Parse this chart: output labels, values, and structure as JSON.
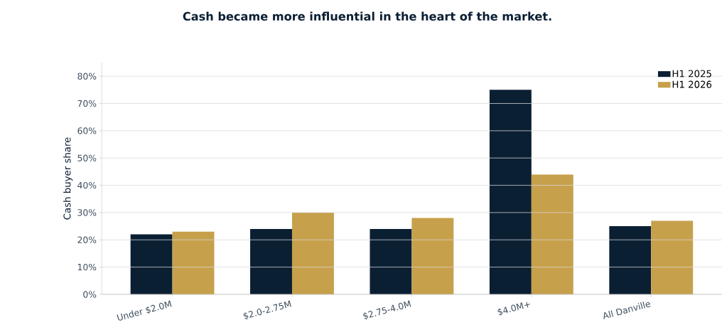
{
  "chart_data": {
    "type": "bar",
    "title": "Cash became more influential in the heart of the market.",
    "ylabel": "Cash buyer share",
    "categories": [
      "Under $2.0M",
      "$2.0-2.75M",
      "$2.75-4.0M",
      "$4.0M+",
      "All Danville"
    ],
    "series": [
      {
        "name": "H1 2025",
        "color": "#0b1f33",
        "values": [
          22,
          24,
          24,
          75,
          25
        ]
      },
      {
        "name": "H1 2026",
        "color": "#c6a04b",
        "values": [
          23,
          30,
          28,
          44,
          27
        ]
      }
    ],
    "ylim": [
      0,
      85
    ],
    "yticks": [
      {
        "value": 0,
        "label": "0%"
      },
      {
        "value": 10,
        "label": "10%"
      },
      {
        "value": 20,
        "label": "20%"
      },
      {
        "value": 30,
        "label": "30%"
      },
      {
        "value": 40,
        "label": "40%"
      },
      {
        "value": 50,
        "label": "50%"
      },
      {
        "value": 60,
        "label": "60%"
      },
      {
        "value": 70,
        "label": "70%"
      },
      {
        "value": 80,
        "label": "80%"
      }
    ],
    "grid": "y",
    "legend": "top right"
  }
}
